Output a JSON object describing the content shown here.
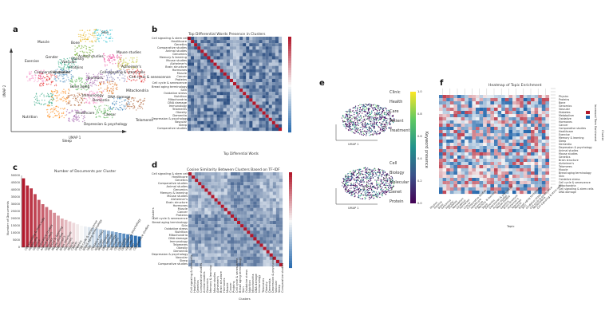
{
  "panels": {
    "a": {
      "label": "a",
      "axis_x": "UMAP 1",
      "axis_y": "UMAP 2",
      "clusters": [
        "Muscle",
        "Bone",
        "Skin",
        "Animal studies",
        "Mouse studies",
        "Gender",
        "Vascular",
        "Obesity",
        "Alzheimer's",
        "Exercise",
        "Comparative studies",
        "Hormones",
        "Cell signaling & stem cells",
        "Proteins",
        "Bone aging",
        "Cell cycle & senescence",
        "Mitochondria",
        "Genetics",
        "Dementia",
        "Immunology",
        "DNA damage",
        "Healthcare",
        "Cancer",
        "Telomeres",
        "Nutrition",
        "Depression & psychology",
        "Sleep"
      ]
    },
    "b": {
      "label": "b",
      "title": "Top Differential Words Presence in Clusters",
      "row_labels": [
        "Cell signaling & stem cells",
        "Healthcare",
        "Genetics",
        "Comparative studies",
        "Animal studies",
        "Genomics",
        "Memory & learning",
        "Mouse studies",
        "Alzheimer's",
        "Brain structure",
        "Hormones",
        "Muscle",
        "Cancer",
        "Proteins",
        "Cell cycle & senescence",
        "Bread aging terminology",
        "Skin",
        "Oxidative stress",
        "Nutrition",
        "Mitochondria",
        "DNA damage",
        "Immunology",
        "Telomeres",
        "Obesity",
        "Dementia",
        "Depression & psychology",
        "Vascular",
        "Sleep",
        "Comparative studies"
      ],
      "xlabel": "Top Differential Words"
    },
    "c": {
      "label": "c",
      "title": "Number of Documents per Cluster",
      "ylabel": "Number of Documents",
      "yticks": [
        "50000",
        "45000",
        "40000",
        "35000",
        "30000",
        "25000",
        "20000",
        "15000",
        "10000",
        "5000",
        "0"
      ]
    },
    "d": {
      "label": "d",
      "title": "Cosine Similarity Between Clusters Based on TF-IDF",
      "ylabel": "Clusters",
      "xlabel": "Clusters",
      "row_labels": [
        "Cell signaling & stem cells",
        "Healthcare",
        "Genetics",
        "Comparative studies",
        "Animal studies",
        "Genomics",
        "Memory & learning",
        "Mouse studies",
        "Alzheimer's",
        "Brain structure",
        "Hormones",
        "Muscle",
        "Cancer",
        "Proteins",
        "Cell cycle & senescence",
        "Bread aging terminology",
        "Skin",
        "Oxidative stress",
        "Nutrition",
        "Mitochondria",
        "DNA damage",
        "Immunology",
        "Telomeres",
        "Obesity",
        "Dementia",
        "Depression & psychology",
        "Vascular",
        "Sleep",
        "Comparative studies"
      ]
    },
    "e": {
      "label": "e",
      "axis_x": "UMAP 1",
      "axis_y": "UMAP 2",
      "colorbar_label": "Keyword presence",
      "colorbar_ticks": [
        "1.0",
        "0.8",
        "0.6",
        "0.4",
        "0.2",
        "0.0"
      ],
      "words_top": [
        "Clinic",
        "Health",
        "Care",
        "Patient",
        "Treatment"
      ],
      "words_bottom": [
        "Cell",
        "Biology",
        "Molecular",
        "Genet",
        "Protein"
      ]
    },
    "f": {
      "label": "f",
      "title": "Heatmap of Topic Enrichment",
      "xlabel": "Topic",
      "ylabel": "Cluster",
      "legend_label": "Increased Term Enrichment",
      "row_labels": [
        "Physics",
        "Proteins",
        "Bone",
        "Genomics",
        "Vascular",
        "Diabetes",
        "Metabolism",
        "Oxidative",
        "Hormones",
        "Cancer",
        "Comparative studies",
        "Healthcare",
        "Exercise",
        "Memory & learning",
        "Sleep",
        "Dementia",
        "Depression & psychology",
        "Animal studies",
        "Mouse studies",
        "Genetics",
        "Brain structure",
        "Alzheimer's",
        "Telomeres",
        "Muscle",
        "Bread aging terminology",
        "Skin",
        "Oxidative stress",
        "Cell cycle & senescence",
        "Mitochondria",
        "Cell signaling & stem cells",
        "DNA damage"
      ]
    }
  },
  "colors": {
    "blue": "#2b6aa8",
    "red": "#b2182b",
    "white": "#f7f7f7"
  }
}
